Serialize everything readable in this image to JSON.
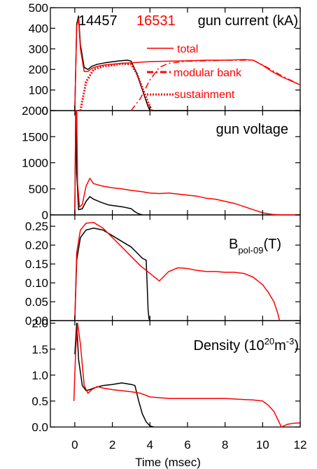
{
  "figure": {
    "xlabel": "Time (msec)",
    "xticks": [
      "0",
      "2",
      "4",
      "6",
      "8",
      "10",
      "12"
    ],
    "shot_a": "14457",
    "shot_b": "16531",
    "colors": {
      "shot_a": "#000000",
      "shot_b": "#ff0000"
    }
  },
  "chart_data": [
    {
      "type": "line",
      "title": "gun current (kA)",
      "xlim": [
        -1.3,
        12
      ],
      "ylim": [
        0,
        500
      ],
      "yticks": [
        "0",
        "100",
        "200",
        "300",
        "400",
        "500"
      ],
      "legend": {
        "placement": "top-right",
        "entries": [
          {
            "label": "total",
            "style": "solid"
          },
          {
            "label": "modular bank",
            "style": "dash-dot"
          },
          {
            "label": "sustainment",
            "style": "dotted"
          }
        ]
      },
      "series": [
        {
          "name": "14457",
          "color": "#000000",
          "style": "solid",
          "x": [
            0,
            0.1,
            0.2,
            0.3,
            0.5,
            0.7,
            0.9,
            1.2,
            1.6,
            2.0,
            2.4,
            2.8,
            3.0,
            3.3,
            3.6,
            3.9,
            4.0,
            5.0,
            6.0
          ],
          "y": [
            0,
            420,
            460,
            320,
            210,
            200,
            215,
            225,
            232,
            237,
            242,
            245,
            240,
            180,
            100,
            20,
            0,
            0,
            0
          ]
        },
        {
          "name": "16531",
          "color": "#ff0000",
          "style": "solid",
          "x": [
            0,
            0.1,
            0.2,
            0.3,
            0.5,
            0.7,
            0.9,
            1.2,
            1.6,
            2.0,
            2.5,
            3.0,
            3.5,
            4.0,
            5.0,
            6.0,
            7.0,
            8.0,
            9.0,
            9.5,
            10.0,
            10.5,
            11.0,
            11.5,
            12.0
          ],
          "y": [
            0,
            410,
            445,
            300,
            190,
            190,
            205,
            215,
            222,
            225,
            230,
            232,
            235,
            238,
            240,
            242,
            245,
            245,
            248,
            245,
            220,
            190,
            165,
            145,
            125
          ]
        },
        {
          "name": "modular bank",
          "color": "#ff0000",
          "style": "dash-dot",
          "x": [
            3.0,
            3.5,
            4.0,
            4.5,
            5.0,
            6.0,
            8.0,
            9.5,
            10.0,
            11.0,
            12.0
          ],
          "y": [
            0,
            60,
            150,
            210,
            230,
            240,
            245,
            245,
            222,
            170,
            125
          ]
        },
        {
          "name": "sustainment",
          "color": "#ff0000",
          "style": "dotted",
          "x": [
            0.3,
            0.6,
            1.0,
            1.5,
            2.0,
            2.5,
            3.0,
            3.3,
            3.6,
            3.9,
            4.1
          ],
          "y": [
            0,
            140,
            200,
            215,
            220,
            228,
            225,
            180,
            110,
            40,
            0
          ]
        }
      ]
    },
    {
      "type": "line",
      "title": "gun voltage",
      "xlim": [
        -1.3,
        12
      ],
      "ylim": [
        0,
        2000
      ],
      "yticks": [
        "0",
        "500",
        "1000",
        "1500",
        "2000"
      ],
      "series": [
        {
          "name": "14457",
          "color": "#000000",
          "style": "solid",
          "x": [
            0,
            0.05,
            0.1,
            0.2,
            0.4,
            0.6,
            0.8,
            1.0,
            1.4,
            1.8,
            2.2,
            2.6,
            3.0,
            3.2,
            3.4,
            3.6
          ],
          "y": [
            0,
            1950,
            800,
            100,
            120,
            260,
            350,
            300,
            240,
            190,
            170,
            150,
            120,
            60,
            20,
            0
          ]
        },
        {
          "name": "16531",
          "color": "#ff0000",
          "style": "solid",
          "x": [
            0,
            0.05,
            0.1,
            0.15,
            0.25,
            0.4,
            0.6,
            0.8,
            1.0,
            1.5,
            2.0,
            2.5,
            3.0,
            3.5,
            4.0,
            4.5,
            5.0,
            5.5,
            6.0,
            6.5,
            7.0,
            7.5,
            8.0,
            8.5,
            9.0,
            9.5,
            10.0,
            10.5,
            11.0,
            12.0
          ],
          "y": [
            0,
            2000,
            2000,
            600,
            150,
            200,
            550,
            700,
            600,
            550,
            520,
            500,
            470,
            450,
            420,
            410,
            420,
            400,
            380,
            360,
            320,
            300,
            260,
            220,
            160,
            100,
            40,
            10,
            0,
            0
          ]
        }
      ]
    },
    {
      "type": "line",
      "title": "B_pol-09(T)",
      "xlim": [
        -1.3,
        12
      ],
      "ylim": [
        0,
        0.28
      ],
      "yticks": [
        "0.00",
        "0.05",
        "0.10",
        "0.15",
        "0.20",
        "0.25"
      ],
      "series": [
        {
          "name": "14457",
          "color": "#000000",
          "style": "solid",
          "x": [
            0,
            0.1,
            0.3,
            0.6,
            1.0,
            1.5,
            2.0,
            2.5,
            3.0,
            3.3,
            3.6,
            3.8,
            3.85,
            3.9,
            3.95,
            4.0
          ],
          "y": [
            0,
            0.16,
            0.22,
            0.24,
            0.245,
            0.24,
            0.225,
            0.21,
            0.195,
            0.18,
            0.165,
            0.16,
            0.1,
            0.03,
            0.005,
            0
          ]
        },
        {
          "name": "16531",
          "color": "#ff0000",
          "style": "solid",
          "x": [
            0,
            0.1,
            0.3,
            0.6,
            1.0,
            1.5,
            2.0,
            2.5,
            3.0,
            3.5,
            4.0,
            4.5,
            5.0,
            5.5,
            6.0,
            6.5,
            7.0,
            7.5,
            8.0,
            8.5,
            9.0,
            9.5,
            10.0,
            10.3,
            10.6,
            10.8,
            10.9
          ],
          "y": [
            0,
            0.18,
            0.24,
            0.258,
            0.26,
            0.245,
            0.22,
            0.195,
            0.17,
            0.145,
            0.125,
            0.105,
            0.13,
            0.14,
            0.138,
            0.133,
            0.13,
            0.13,
            0.128,
            0.128,
            0.125,
            0.115,
            0.095,
            0.075,
            0.05,
            0.02,
            0
          ]
        }
      ]
    },
    {
      "type": "line",
      "title": "Density (10^20m^-3)",
      "xlim": [
        -1.3,
        12
      ],
      "ylim": [
        0,
        2.05
      ],
      "yticks": [
        "0.0",
        "0.5",
        "1.0",
        "1.5",
        "2.0"
      ],
      "series": [
        {
          "name": "14457",
          "color": "#000000",
          "style": "solid",
          "x": [
            0,
            0.1,
            0.2,
            0.4,
            0.6,
            0.8,
            1.0,
            1.5,
            2.0,
            2.5,
            3.0,
            3.2,
            3.4,
            3.6,
            3.8,
            4.0,
            4.2
          ],
          "y": [
            1.4,
            2.0,
            1.3,
            0.8,
            0.7,
            0.72,
            0.75,
            0.8,
            0.82,
            0.85,
            0.82,
            0.8,
            0.5,
            0.25,
            0.1,
            0.02,
            0
          ]
        },
        {
          "name": "16531",
          "color": "#ff0000",
          "style": "solid",
          "x": [
            -0.05,
            0.05,
            0.15,
            0.3,
            0.5,
            0.7,
            0.9,
            1.2,
            1.5,
            2.0,
            2.5,
            3.0,
            3.5,
            4.0,
            5.0,
            6.0,
            7.0,
            8.0,
            9.0,
            9.5,
            10.0,
            10.3,
            10.6,
            10.8,
            11.0,
            11.3,
            11.6,
            12.0
          ],
          "y": [
            0.5,
            1.5,
            2.0,
            1.6,
            0.8,
            0.65,
            0.72,
            0.78,
            0.75,
            0.72,
            0.7,
            0.68,
            0.65,
            0.58,
            0.55,
            0.55,
            0.55,
            0.55,
            0.53,
            0.52,
            0.5,
            0.42,
            0.3,
            0.15,
            0.0,
            0.05,
            0.07,
            0.08
          ]
        }
      ]
    }
  ]
}
